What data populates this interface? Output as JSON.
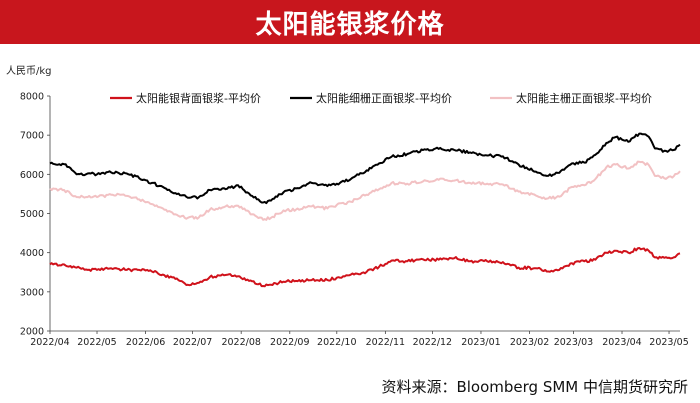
{
  "header": {
    "title": "太阳能银浆价格",
    "title_bg": "#c8161d"
  },
  "source": "资料来源：Bloomberg SMM 中信期货研究所",
  "chart_data": {
    "type": "line",
    "title": "太阳能银浆价格",
    "ylabel": "人民币/kg",
    "xlabel": "",
    "ylim": [
      2000,
      8000
    ],
    "yticks": [
      2000,
      3000,
      4000,
      5000,
      6000,
      7000,
      8000
    ],
    "xticks": [
      "2022/04",
      "2022/05",
      "2022/06",
      "2022/07",
      "2022/08",
      "2022/09",
      "2022/10",
      "2022/11",
      "2022/12",
      "2023/01",
      "2023/02",
      "2023/03",
      "2023/04",
      "2023/05"
    ],
    "grid": false,
    "legend_position": "top",
    "series": [
      {
        "name": "太阳能银背面银浆-平均价",
        "color": "#d0121b",
        "values": [
          [
            "2022/04/01",
            3700
          ],
          [
            "2022/04/10",
            3700
          ],
          [
            "2022/04/18",
            3620
          ],
          [
            "2022/04/25",
            3560
          ],
          [
            "2022/05/01",
            3560
          ],
          [
            "2022/05/10",
            3600
          ],
          [
            "2022/05/20",
            3560
          ],
          [
            "2022/05/28",
            3560
          ],
          [
            "2022/06/05",
            3520
          ],
          [
            "2022/06/12",
            3440
          ],
          [
            "2022/06/20",
            3330
          ],
          [
            "2022/06/28",
            3180
          ],
          [
            "2022/07/05",
            3230
          ],
          [
            "2022/07/12",
            3380
          ],
          [
            "2022/07/22",
            3430
          ],
          [
            "2022/07/30",
            3400
          ],
          [
            "2022/08/08",
            3270
          ],
          [
            "2022/08/15",
            3150
          ],
          [
            "2022/08/20",
            3180
          ],
          [
            "2022/08/28",
            3260
          ],
          [
            "2022/09/05",
            3280
          ],
          [
            "2022/09/15",
            3300
          ],
          [
            "2022/09/25",
            3300
          ],
          [
            "2022/10/01",
            3360
          ],
          [
            "2022/10/10",
            3440
          ],
          [
            "2022/10/20",
            3510
          ],
          [
            "2022/10/28",
            3640
          ],
          [
            "2022/11/05",
            3800
          ],
          [
            "2022/11/15",
            3780
          ],
          [
            "2022/11/25",
            3830
          ],
          [
            "2022/12/05",
            3820
          ],
          [
            "2022/12/15",
            3860
          ],
          [
            "2022/12/25",
            3780
          ],
          [
            "2023/01/05",
            3780
          ],
          [
            "2023/01/15",
            3760
          ],
          [
            "2023/01/25",
            3620
          ],
          [
            "2023/02/05",
            3600
          ],
          [
            "2023/02/12",
            3520
          ],
          [
            "2023/02/20",
            3560
          ],
          [
            "2023/02/28",
            3730
          ],
          [
            "2023/03/08",
            3780
          ],
          [
            "2023/03/15",
            3820
          ],
          [
            "2023/03/22",
            4000
          ],
          [
            "2023/03/28",
            4050
          ],
          [
            "2023/04/05",
            4000
          ],
          [
            "2023/04/12",
            4120
          ],
          [
            "2023/04/18",
            4050
          ],
          [
            "2023/04/22",
            3880
          ],
          [
            "2023/04/28",
            3870
          ],
          [
            "2023/05/04",
            3880
          ],
          [
            "2023/05/08",
            3980
          ]
        ]
      },
      {
        "name": "太阳能细栅正面银浆-平均价",
        "color": "#000000",
        "values": [
          [
            "2022/04/01",
            6280
          ],
          [
            "2022/04/10",
            6260
          ],
          [
            "2022/04/18",
            6000
          ],
          [
            "2022/04/25",
            6020
          ],
          [
            "2022/05/01",
            6000
          ],
          [
            "2022/05/10",
            6050
          ],
          [
            "2022/05/20",
            6020
          ],
          [
            "2022/05/28",
            5900
          ],
          [
            "2022/06/05",
            5780
          ],
          [
            "2022/06/12",
            5680
          ],
          [
            "2022/06/20",
            5520
          ],
          [
            "2022/06/28",
            5400
          ],
          [
            "2022/07/05",
            5420
          ],
          [
            "2022/07/12",
            5600
          ],
          [
            "2022/07/22",
            5620
          ],
          [
            "2022/07/30",
            5720
          ],
          [
            "2022/08/08",
            5450
          ],
          [
            "2022/08/15",
            5280
          ],
          [
            "2022/08/20",
            5330
          ],
          [
            "2022/08/28",
            5540
          ],
          [
            "2022/09/05",
            5640
          ],
          [
            "2022/09/15",
            5780
          ],
          [
            "2022/09/25",
            5700
          ],
          [
            "2022/10/01",
            5760
          ],
          [
            "2022/10/10",
            5880
          ],
          [
            "2022/10/20",
            6100
          ],
          [
            "2022/10/28",
            6280
          ],
          [
            "2022/11/05",
            6450
          ],
          [
            "2022/11/15",
            6520
          ],
          [
            "2022/11/25",
            6620
          ],
          [
            "2022/12/05",
            6650
          ],
          [
            "2022/12/15",
            6620
          ],
          [
            "2022/12/25",
            6560
          ],
          [
            "2023/01/05",
            6480
          ],
          [
            "2023/01/15",
            6460
          ],
          [
            "2023/01/25",
            6250
          ],
          [
            "2023/02/05",
            6070
          ],
          [
            "2023/02/12",
            5960
          ],
          [
            "2023/02/20",
            6040
          ],
          [
            "2023/02/28",
            6280
          ],
          [
            "2023/03/08",
            6300
          ],
          [
            "2023/03/15",
            6500
          ],
          [
            "2023/03/22",
            6800
          ],
          [
            "2023/03/28",
            6950
          ],
          [
            "2023/04/05",
            6830
          ],
          [
            "2023/04/12",
            7040
          ],
          [
            "2023/04/18",
            6960
          ],
          [
            "2023/04/22",
            6660
          ],
          [
            "2023/04/28",
            6600
          ],
          [
            "2023/05/04",
            6620
          ],
          [
            "2023/05/08",
            6760
          ]
        ]
      },
      {
        "name": "太阳能主栅正面银浆-平均价",
        "color": "#f2c1c3",
        "values": [
          [
            "2022/04/01",
            5640
          ],
          [
            "2022/04/10",
            5600
          ],
          [
            "2022/04/18",
            5420
          ],
          [
            "2022/04/25",
            5420
          ],
          [
            "2022/05/01",
            5420
          ],
          [
            "2022/05/10",
            5480
          ],
          [
            "2022/05/20",
            5450
          ],
          [
            "2022/05/28",
            5360
          ],
          [
            "2022/06/05",
            5240
          ],
          [
            "2022/06/12",
            5130
          ],
          [
            "2022/06/20",
            4980
          ],
          [
            "2022/06/28",
            4890
          ],
          [
            "2022/07/05",
            4900
          ],
          [
            "2022/07/12",
            5100
          ],
          [
            "2022/07/22",
            5180
          ],
          [
            "2022/07/30",
            5200
          ],
          [
            "2022/08/08",
            4980
          ],
          [
            "2022/08/15",
            4840
          ],
          [
            "2022/08/20",
            4890
          ],
          [
            "2022/08/28",
            5080
          ],
          [
            "2022/09/05",
            5100
          ],
          [
            "2022/09/15",
            5180
          ],
          [
            "2022/09/25",
            5130
          ],
          [
            "2022/10/01",
            5220
          ],
          [
            "2022/10/10",
            5300
          ],
          [
            "2022/10/20",
            5480
          ],
          [
            "2022/10/28",
            5620
          ],
          [
            "2022/11/05",
            5780
          ],
          [
            "2022/11/15",
            5760
          ],
          [
            "2022/11/25",
            5820
          ],
          [
            "2022/12/05",
            5860
          ],
          [
            "2022/12/15",
            5840
          ],
          [
            "2022/12/25",
            5780
          ],
          [
            "2023/01/05",
            5760
          ],
          [
            "2023/01/15",
            5740
          ],
          [
            "2023/01/25",
            5560
          ],
          [
            "2023/02/05",
            5460
          ],
          [
            "2023/02/12",
            5380
          ],
          [
            "2023/02/20",
            5430
          ],
          [
            "2023/02/28",
            5680
          ],
          [
            "2023/03/08",
            5720
          ],
          [
            "2023/03/15",
            5880
          ],
          [
            "2023/03/22",
            6180
          ],
          [
            "2023/03/28",
            6250
          ],
          [
            "2023/04/05",
            6150
          ],
          [
            "2023/04/12",
            6320
          ],
          [
            "2023/04/18",
            6240
          ],
          [
            "2023/04/22",
            5960
          ],
          [
            "2023/04/28",
            5900
          ],
          [
            "2023/05/04",
            5950
          ],
          [
            "2023/05/08",
            6080
          ]
        ]
      }
    ]
  }
}
